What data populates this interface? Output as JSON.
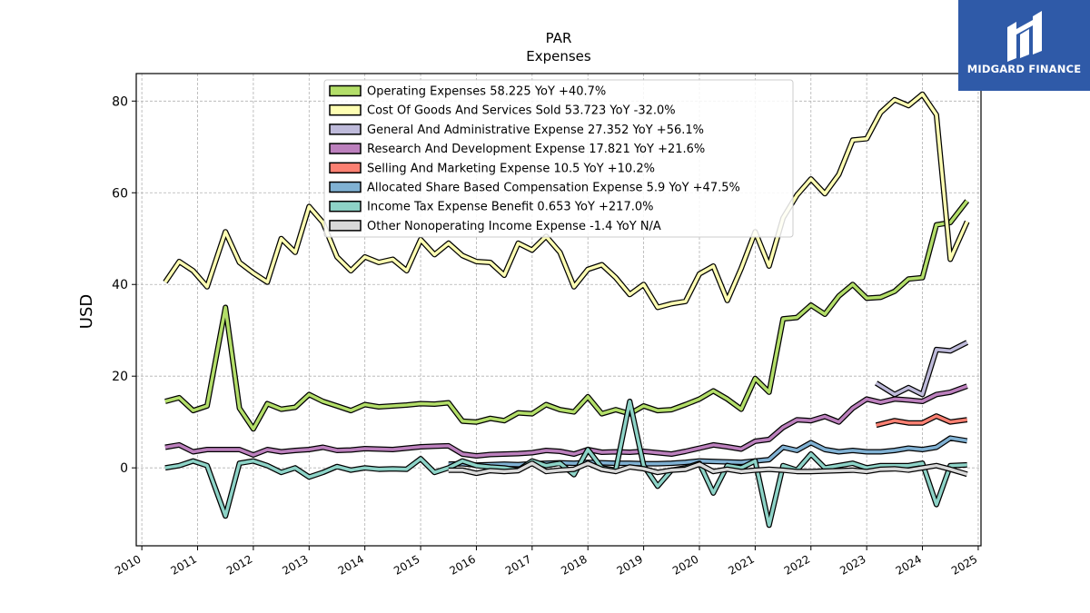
{
  "brand": {
    "name": "MIDGARD FINANCE",
    "color": "#2f5aa8"
  },
  "chart_data": {
    "type": "line",
    "title": "PAR",
    "subtitle": "Expenses",
    "xlabel": "",
    "ylabel": "USD",
    "xlim": [
      2009.9,
      2025.05
    ],
    "ylim": [
      -17,
      86
    ],
    "x_ticks": [
      "2010",
      "2011",
      "2012",
      "2013",
      "2014",
      "2015",
      "2016",
      "2017",
      "2018",
      "2019",
      "2020",
      "2021",
      "2022",
      "2023",
      "2024",
      "2025"
    ],
    "y_ticks": [
      "0",
      "20",
      "40",
      "60",
      "80"
    ],
    "grid": true,
    "legend_position": "top-center",
    "series": [
      {
        "name": "Operating Expenses  58.225 YoY +40.7%",
        "color": "#b3de69",
        "x": [
          2010.42,
          2010.67,
          2010.92,
          2011.17,
          2011.5,
          2011.75,
          2012.0,
          2012.25,
          2012.5,
          2012.75,
          2013.0,
          2013.25,
          2013.5,
          2013.75,
          2014.0,
          2014.25,
          2014.5,
          2014.75,
          2015.0,
          2015.25,
          2015.5,
          2015.75,
          2016.0,
          2016.25,
          2016.5,
          2016.75,
          2017.0,
          2017.25,
          2017.5,
          2017.75,
          2018.0,
          2018.25,
          2018.5,
          2018.75,
          2019.0,
          2019.25,
          2019.5,
          2019.75,
          2020.0,
          2020.25,
          2020.5,
          2020.75,
          2021.0,
          2021.25,
          2021.5,
          2021.75,
          2022.0,
          2022.25,
          2022.5,
          2022.75,
          2023.0,
          2023.25,
          2023.5,
          2023.75,
          2024.0,
          2024.25,
          2024.5,
          2024.8
        ],
        "y": [
          14.5,
          15.3,
          12.5,
          13.5,
          35.0,
          13.0,
          8.5,
          14.0,
          12.8,
          13.2,
          16.0,
          14.5,
          13.5,
          12.5,
          13.8,
          13.3,
          13.5,
          13.7,
          14.0,
          13.9,
          14.2,
          10.2,
          10.0,
          10.8,
          10.3,
          12.0,
          11.8,
          13.8,
          12.7,
          12.2,
          15.5,
          11.8,
          12.7,
          11.8,
          13.5,
          12.5,
          12.7,
          13.8,
          15.0,
          16.8,
          15.0,
          12.8,
          19.5,
          16.5,
          32.5,
          32.8,
          35.5,
          33.5,
          37.5,
          40.0,
          37.0,
          37.2,
          38.5,
          41.2,
          41.5,
          53.0,
          53.5,
          58.225
        ]
      },
      {
        "name": "Cost Of Goods And Services Sold  53.723 YoY -32.0%",
        "color": "#ffffb3",
        "x": [
          2010.42,
          2010.67,
          2010.92,
          2011.17,
          2011.5,
          2011.75,
          2012.0,
          2012.25,
          2012.5,
          2012.75,
          2013.0,
          2013.25,
          2013.5,
          2013.75,
          2014.0,
          2014.25,
          2014.5,
          2014.75,
          2015.0,
          2015.25,
          2015.5,
          2015.75,
          2016.0,
          2016.25,
          2016.5,
          2016.75,
          2017.0,
          2017.25,
          2017.5,
          2017.75,
          2018.0,
          2018.25,
          2018.5,
          2018.75,
          2019.0,
          2019.25,
          2019.5,
          2019.75,
          2020.0,
          2020.25,
          2020.5,
          2020.75,
          2021.0,
          2021.25,
          2021.5,
          2021.75,
          2022.0,
          2022.25,
          2022.5,
          2022.75,
          2023.0,
          2023.25,
          2023.5,
          2023.75,
          2024.0,
          2024.25,
          2024.5,
          2024.8
        ],
        "y": [
          40.5,
          45.0,
          43.0,
          39.5,
          51.5,
          44.8,
          42.5,
          40.5,
          50.0,
          47.0,
          57.0,
          53.5,
          46.0,
          43.0,
          46.0,
          44.8,
          45.5,
          43.0,
          49.8,
          46.5,
          49.0,
          46.3,
          45.0,
          44.8,
          42.0,
          49.0,
          47.5,
          50.5,
          47.0,
          39.5,
          43.3,
          44.3,
          41.5,
          37.8,
          40.0,
          35.0,
          35.8,
          36.3,
          42.3,
          44.0,
          36.5,
          43.5,
          51.5,
          44.0,
          54.5,
          59.5,
          63.0,
          59.8,
          64.0,
          71.5,
          71.8,
          77.5,
          80.3,
          79.0,
          81.5,
          77.0,
          45.5,
          53.723
        ]
      },
      {
        "name": "General And Administrative Expense  27.352 YoY +56.1%",
        "color": "#bebada",
        "x": [
          2023.17,
          2023.5,
          2023.75,
          2024.0,
          2024.25,
          2024.5,
          2024.8
        ],
        "y": [
          18.5,
          16.0,
          17.5,
          16.0,
          25.8,
          25.5,
          27.352
        ]
      },
      {
        "name": "Research And Development Expense  17.821 YoY +21.6%",
        "color": "#bc80bd",
        "x": [
          2010.42,
          2010.67,
          2010.92,
          2011.17,
          2011.5,
          2011.75,
          2012.0,
          2012.25,
          2012.5,
          2012.75,
          2013.0,
          2013.25,
          2013.5,
          2013.75,
          2014.0,
          2014.25,
          2014.5,
          2014.75,
          2015.0,
          2015.25,
          2015.5,
          2015.75,
          2016.0,
          2016.25,
          2016.5,
          2016.75,
          2017.0,
          2017.25,
          2017.5,
          2017.75,
          2018.0,
          2018.25,
          2018.5,
          2018.75,
          2019.0,
          2019.25,
          2019.5,
          2019.75,
          2020.0,
          2020.25,
          2020.5,
          2020.75,
          2021.0,
          2021.25,
          2021.5,
          2021.75,
          2022.0,
          2022.25,
          2022.5,
          2022.75,
          2023.0,
          2023.25,
          2023.5,
          2023.75,
          2024.0,
          2024.25,
          2024.5,
          2024.8
        ],
        "y": [
          4.5,
          5.0,
          3.5,
          4.0,
          4.0,
          4.0,
          2.8,
          4.0,
          3.5,
          3.8,
          4.0,
          4.5,
          3.8,
          3.9,
          4.2,
          4.1,
          4.0,
          4.3,
          4.6,
          4.7,
          4.8,
          3.0,
          2.6,
          2.9,
          3.0,
          3.1,
          3.3,
          3.8,
          3.6,
          3.0,
          4.0,
          3.4,
          3.5,
          3.4,
          3.6,
          3.3,
          3.0,
          3.6,
          4.3,
          5.0,
          4.6,
          4.1,
          5.8,
          6.2,
          8.8,
          10.5,
          10.3,
          11.2,
          10.0,
          13.0,
          15.0,
          14.3,
          15.0,
          14.8,
          14.5,
          16.0,
          16.5,
          17.821
        ]
      },
      {
        "name": "Selling And Marketing Expense  10.5 YoY +10.2%",
        "color": "#fb8072",
        "x": [
          2023.17,
          2023.5,
          2023.75,
          2024.0,
          2024.25,
          2024.5,
          2024.8
        ],
        "y": [
          9.3,
          10.3,
          9.8,
          9.8,
          11.3,
          10.0,
          10.5
        ]
      },
      {
        "name": "Allocated Share Based Compensation Expense  5.9 YoY +47.5%",
        "color": "#80b1d3",
        "x": [
          2015.5,
          2015.75,
          2016.0,
          2016.25,
          2016.5,
          2016.75,
          2017.0,
          2017.25,
          2017.5,
          2017.75,
          2018.0,
          2018.25,
          2018.5,
          2018.75,
          2019.0,
          2019.25,
          2019.5,
          2019.75,
          2020.0,
          2020.25,
          2020.5,
          2020.75,
          2021.0,
          2021.25,
          2021.5,
          2021.75,
          2022.0,
          2022.25,
          2022.5,
          2022.75,
          2023.0,
          2023.25,
          2023.5,
          2023.75,
          2024.0,
          2024.25,
          2024.5,
          2024.8
        ],
        "y": [
          0.8,
          0.9,
          0.6,
          0.7,
          0.8,
          0.7,
          0.9,
          1.0,
          1.1,
          1.0,
          1.2,
          1.1,
          1.0,
          1.0,
          0.9,
          0.9,
          1.0,
          1.2,
          1.5,
          1.4,
          1.3,
          1.2,
          1.5,
          1.8,
          4.5,
          3.8,
          5.5,
          4.0,
          3.5,
          3.8,
          3.5,
          3.5,
          3.8,
          4.3,
          4.0,
          4.5,
          6.5,
          5.9
        ]
      },
      {
        "name": "Income Tax Expense Benefit  0.653 YoY +217.0%",
        "color": "#8dd3c7",
        "x": [
          2010.42,
          2010.67,
          2010.92,
          2011.17,
          2011.5,
          2011.75,
          2012.0,
          2012.25,
          2012.5,
          2012.75,
          2013.0,
          2013.25,
          2013.5,
          2013.75,
          2014.0,
          2014.25,
          2014.5,
          2014.75,
          2015.0,
          2015.25,
          2015.5,
          2015.75,
          2016.0,
          2016.25,
          2016.5,
          2016.75,
          2017.0,
          2017.25,
          2017.5,
          2017.75,
          2018.0,
          2018.25,
          2018.5,
          2018.75,
          2019.0,
          2019.25,
          2019.5,
          2019.75,
          2020.0,
          2020.25,
          2020.5,
          2020.75,
          2021.0,
          2021.25,
          2021.5,
          2021.75,
          2022.0,
          2022.25,
          2022.5,
          2022.75,
          2023.0,
          2023.25,
          2023.5,
          2023.75,
          2024.0,
          2024.25,
          2024.5,
          2024.8
        ],
        "y": [
          0.0,
          0.5,
          1.5,
          0.5,
          -10.5,
          1.0,
          1.5,
          0.5,
          -1.0,
          0.0,
          -2.0,
          -1.0,
          0.3,
          -0.5,
          0.0,
          -0.3,
          -0.2,
          -0.3,
          2.0,
          -1.0,
          0.0,
          1.5,
          0.5,
          0.2,
          0.0,
          -0.5,
          1.5,
          0.5,
          1.0,
          -1.5,
          4.0,
          0.0,
          -0.5,
          14.5,
          0.5,
          -4.0,
          -0.5,
          0.0,
          1.0,
          -5.5,
          0.5,
          0.0,
          1.5,
          -12.5,
          0.5,
          -0.5,
          3.0,
          0.0,
          0.5,
          1.0,
          0.0,
          0.5,
          0.5,
          0.5,
          1.0,
          -8.0,
          0.5,
          0.653
        ]
      },
      {
        "name": "Other Nonoperating Income Expense  -1.4 YoY N/A",
        "color": "#d9d9d9",
        "x": [
          2015.5,
          2015.75,
          2016.0,
          2016.25,
          2016.5,
          2016.75,
          2017.0,
          2017.25,
          2017.5,
          2017.75,
          2018.0,
          2018.25,
          2018.5,
          2018.75,
          2019.0,
          2019.25,
          2019.5,
          2019.75,
          2020.0,
          2020.25,
          2020.5,
          2020.75,
          2021.0,
          2021.25,
          2021.5,
          2021.75,
          2022.0,
          2022.25,
          2022.5,
          2022.75,
          2023.0,
          2023.25,
          2023.5,
          2023.75,
          2024.0,
          2024.25,
          2024.5,
          2024.8
        ],
        "y": [
          -0.5,
          -0.5,
          -1.2,
          -0.6,
          -0.8,
          -0.6,
          1.0,
          -0.8,
          -0.5,
          -0.3,
          1.0,
          -0.3,
          -0.8,
          0.2,
          -0.2,
          -1.0,
          -0.5,
          -0.3,
          0.8,
          -0.8,
          -0.3,
          -0.8,
          -0.5,
          -0.3,
          -0.5,
          -0.8,
          -0.8,
          -0.7,
          -0.6,
          -0.5,
          -0.8,
          -0.3,
          -0.2,
          -0.5,
          0.0,
          0.5,
          -0.3,
          -1.4
        ]
      }
    ]
  }
}
